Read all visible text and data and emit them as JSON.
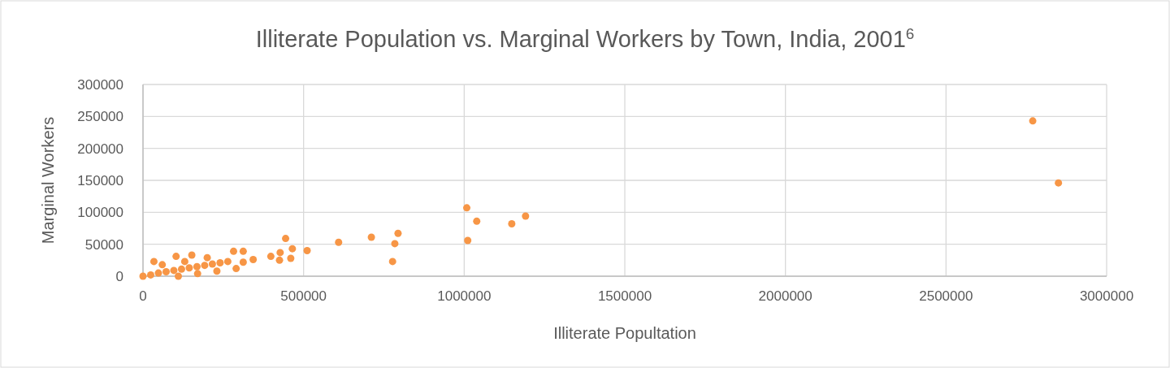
{
  "chart_data": {
    "type": "scatter",
    "title": "Illiterate Population vs. Marginal Workers by Town, India, 2001$^{6}$",
    "xlabel": "Illiterate Popultation",
    "ylabel": "Marginal Workers",
    "xlim": [
      0,
      3000000
    ],
    "ylim": [
      0,
      300000
    ],
    "xticks": [
      0,
      500000,
      1000000,
      1500000,
      2000000,
      2500000,
      3000000
    ],
    "yticks": [
      0,
      50000,
      100000,
      150000,
      200000,
      250000,
      300000
    ],
    "grid": true,
    "marker": "circle",
    "series": [
      {
        "color": "#f79646",
        "x": [
          0,
          24000,
          48000,
          72000,
          96000,
          120000,
          144000,
          168000,
          192000,
          216000,
          240000,
          264000,
          312000,
          34000,
          60000,
          103000,
          130000,
          152000,
          200000,
          110000,
          170000,
          230000,
          290000,
          282000,
          312000,
          343000,
          398000,
          425000,
          427000,
          444000,
          460000,
          465000,
          511000,
          609000,
          711000,
          777000,
          784000,
          794000,
          1008000,
          1011000,
          1039000,
          1148000,
          1191000,
          2770000,
          2850000
        ],
        "values": [
          0,
          2000,
          5000,
          7000,
          9000,
          11000,
          13000,
          15000,
          17000,
          19000,
          21000,
          23000,
          22000,
          23000,
          18000,
          31000,
          23000,
          33000,
          29000,
          0,
          4000,
          8000,
          12000,
          39000,
          39000,
          26000,
          31000,
          25000,
          37000,
          59000,
          28000,
          43000,
          40000,
          53000,
          61000,
          23000,
          51000,
          67000,
          107000,
          56000,
          86000,
          82000,
          94000,
          243000,
          146000
        ]
      }
    ]
  }
}
